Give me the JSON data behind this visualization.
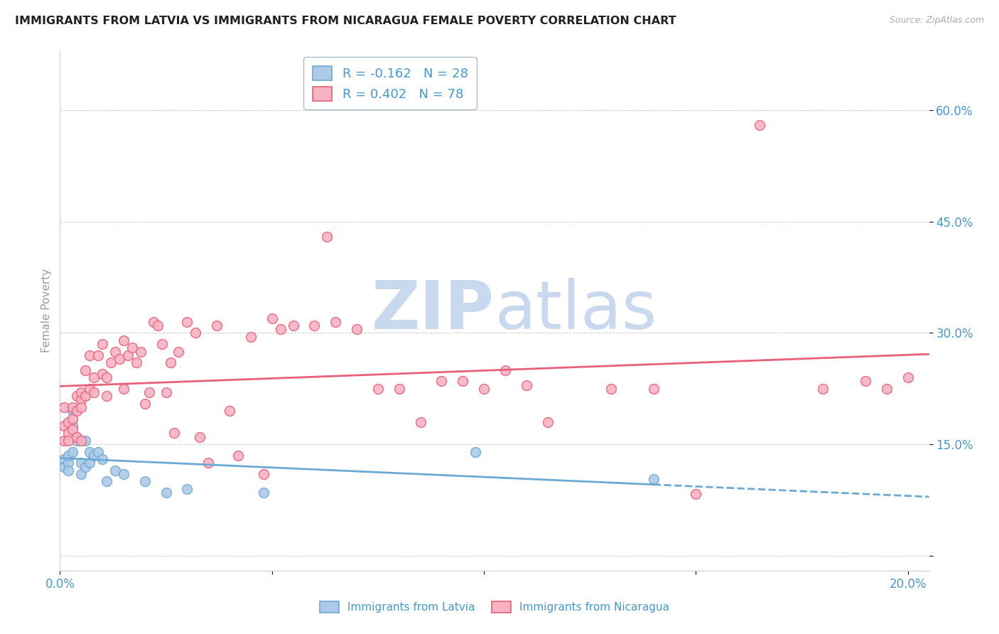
{
  "title": "IMMIGRANTS FROM LATVIA VS IMMIGRANTS FROM NICARAGUA FEMALE POVERTY CORRELATION CHART",
  "source": "Source: ZipAtlas.com",
  "ylabel_label": "Female Poverty",
  "x_min": 0.0,
  "x_max": 0.205,
  "y_min": -0.02,
  "y_max": 0.68,
  "x_ticks": [
    0.0,
    0.05,
    0.1,
    0.15,
    0.2
  ],
  "x_tick_labels": [
    "0.0%",
    "",
    "",
    "",
    "20.0%"
  ],
  "y_ticks": [
    0.0,
    0.15,
    0.3,
    0.45,
    0.6
  ],
  "y_tick_labels": [
    "",
    "15.0%",
    "30.0%",
    "45.0%",
    "60.0%"
  ],
  "latvia_color": "#adc9e8",
  "nicaragua_color": "#f7b3c2",
  "latvia_edge_color": "#6aaad4",
  "nicaragua_edge_color": "#e8607a",
  "latvia_line_color": "#6aaad4",
  "nicaragua_line_color": "#e8607a",
  "R_latvia": -0.162,
  "N_latvia": 28,
  "R_nicaragua": 0.402,
  "N_nicaragua": 78,
  "latvia_scatter_x": [
    0.001,
    0.001,
    0.002,
    0.002,
    0.002,
    0.003,
    0.003,
    0.003,
    0.004,
    0.004,
    0.005,
    0.005,
    0.006,
    0.006,
    0.007,
    0.007,
    0.008,
    0.009,
    0.01,
    0.011,
    0.013,
    0.015,
    0.02,
    0.025,
    0.03,
    0.048,
    0.098,
    0.14
  ],
  "latvia_scatter_y": [
    0.13,
    0.12,
    0.125,
    0.135,
    0.115,
    0.195,
    0.175,
    0.14,
    0.16,
    0.155,
    0.125,
    0.11,
    0.12,
    0.155,
    0.14,
    0.125,
    0.135,
    0.14,
    0.13,
    0.1,
    0.115,
    0.11,
    0.1,
    0.085,
    0.09,
    0.085,
    0.14,
    0.103
  ],
  "nicaragua_scatter_x": [
    0.001,
    0.001,
    0.001,
    0.002,
    0.002,
    0.002,
    0.003,
    0.003,
    0.003,
    0.004,
    0.004,
    0.004,
    0.005,
    0.005,
    0.005,
    0.005,
    0.006,
    0.006,
    0.007,
    0.007,
    0.008,
    0.008,
    0.009,
    0.01,
    0.01,
    0.011,
    0.011,
    0.012,
    0.013,
    0.014,
    0.015,
    0.015,
    0.016,
    0.017,
    0.018,
    0.019,
    0.02,
    0.021,
    0.022,
    0.023,
    0.024,
    0.025,
    0.026,
    0.027,
    0.028,
    0.03,
    0.032,
    0.033,
    0.035,
    0.037,
    0.04,
    0.042,
    0.045,
    0.048,
    0.05,
    0.052,
    0.055,
    0.06,
    0.063,
    0.065,
    0.07,
    0.075,
    0.08,
    0.085,
    0.09,
    0.095,
    0.1,
    0.105,
    0.11,
    0.115,
    0.13,
    0.14,
    0.15,
    0.165,
    0.18,
    0.19,
    0.195,
    0.2
  ],
  "nicaragua_scatter_y": [
    0.155,
    0.175,
    0.2,
    0.165,
    0.18,
    0.155,
    0.185,
    0.2,
    0.17,
    0.16,
    0.195,
    0.215,
    0.21,
    0.155,
    0.2,
    0.22,
    0.215,
    0.25,
    0.225,
    0.27,
    0.22,
    0.24,
    0.27,
    0.245,
    0.285,
    0.215,
    0.24,
    0.26,
    0.275,
    0.265,
    0.225,
    0.29,
    0.27,
    0.28,
    0.26,
    0.275,
    0.205,
    0.22,
    0.315,
    0.31,
    0.285,
    0.22,
    0.26,
    0.165,
    0.275,
    0.315,
    0.3,
    0.16,
    0.125,
    0.31,
    0.195,
    0.135,
    0.295,
    0.11,
    0.32,
    0.305,
    0.31,
    0.31,
    0.43,
    0.315,
    0.305,
    0.225,
    0.225,
    0.18,
    0.235,
    0.235,
    0.225,
    0.25,
    0.23,
    0.18,
    0.225,
    0.225,
    0.083,
    0.58,
    0.225,
    0.235,
    0.225,
    0.24
  ],
  "watermark_zip": "ZIP",
  "watermark_atlas": "atlas",
  "watermark_color": "#c8d8ee",
  "watermark_fontsize": 68
}
